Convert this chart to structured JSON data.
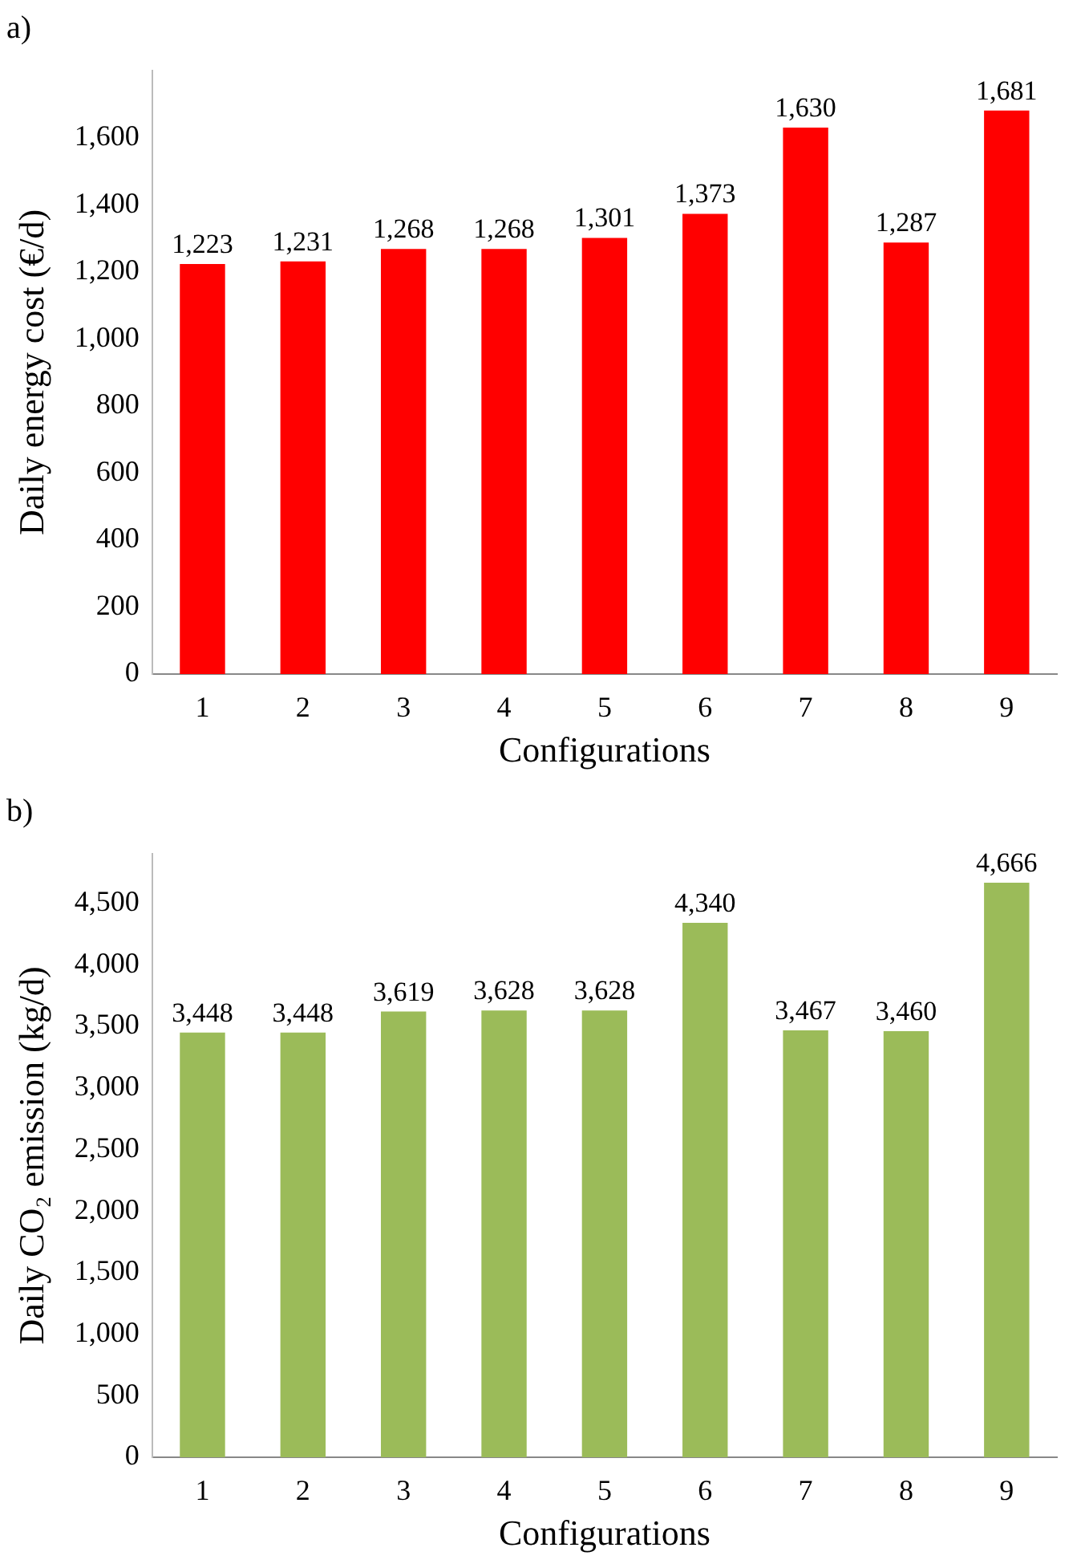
{
  "chart_data": [
    {
      "type": "bar",
      "title": "a)",
      "xlabel": "Configurations",
      "ylabel": "Daily energy cost (€/d)",
      "categories": [
        "1",
        "2",
        "3",
        "4",
        "5",
        "6",
        "7",
        "8",
        "9"
      ],
      "series": [
        {
          "color": "#ff0000",
          "values": [
            1223,
            1231,
            1268,
            1268,
            1301,
            1373,
            1630,
            1287,
            1681
          ],
          "value_labels": [
            "1,223",
            "1,231",
            "1,268",
            "1,268",
            "1,301",
            "1,373",
            "1,630",
            "1,287",
            "1,681"
          ]
        }
      ],
      "ylim": [
        0,
        1800
      ],
      "yticks": [
        0,
        200,
        400,
        600,
        800,
        {
          "value": 1000,
          "label": "1,000"
        },
        {
          "value": 1200,
          "label": "1,200"
        },
        {
          "value": 1400,
          "label": "1,400"
        },
        {
          "value": 1600,
          "label": "1,600"
        }
      ],
      "grid": false,
      "legend": false
    },
    {
      "type": "bar",
      "title": "b)",
      "xlabel": "Configurations",
      "ylabel": "Daily CO₂ emission (kg/d)",
      "categories": [
        "1",
        "2",
        "3",
        "4",
        "5",
        "6",
        "7",
        "8",
        "9"
      ],
      "series": [
        {
          "color": "#9bbb59",
          "values": [
            3448,
            3448,
            3619,
            3628,
            3628,
            4340,
            3467,
            3460,
            4666
          ],
          "value_labels": [
            "3,448",
            "3,448",
            "3,619",
            "3,628",
            "3,628",
            "4,340",
            "3,467",
            "3,460",
            "4,666"
          ]
        }
      ],
      "ylim": [
        0,
        4900
      ],
      "yticks": [
        0,
        500,
        {
          "value": 1000,
          "label": "1,000"
        },
        {
          "value": 1500,
          "label": "1,500"
        },
        {
          "value": 2000,
          "label": "2,000"
        },
        {
          "value": 2500,
          "label": "2,500"
        },
        {
          "value": 3000,
          "label": "3,000"
        },
        {
          "value": 3500,
          "label": "3,500"
        },
        {
          "value": 4000,
          "label": "4,000"
        },
        {
          "value": 4500,
          "label": "4,500"
        }
      ],
      "grid": false,
      "legend": false
    }
  ]
}
